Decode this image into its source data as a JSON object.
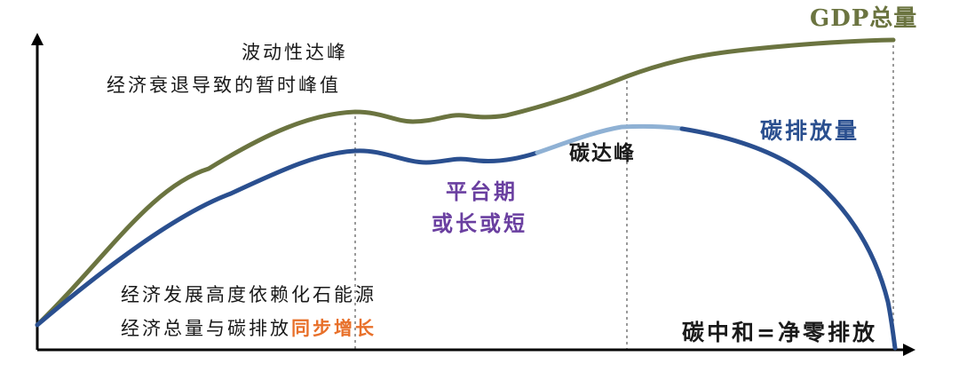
{
  "colors": {
    "gdp": "#6b7440",
    "carbon": "#2a4f8f",
    "carbon_light": "#8fb1d4",
    "plateau": "#6a3fa0",
    "sync_highlight": "#e8702a",
    "axis": "#000000",
    "guide": "#9a9a9a"
  },
  "labels": {
    "gdp_total": "GDP总量",
    "carbon_emissions": "碳排放量",
    "fluctuation_line1": "波动性达峰",
    "fluctuation_line2": "经济衰退导致的暂时峰值",
    "carbon_peak": "碳达峰",
    "plateau_line1": "平台期",
    "plateau_line2": "或长或短",
    "dependency_line1": "经济发展高度依赖化石能源",
    "sync_prefix": "经济总量与碳排放",
    "sync_highlight": "同步增长",
    "carbon_neutral": "碳中和=净零排放"
  }
}
